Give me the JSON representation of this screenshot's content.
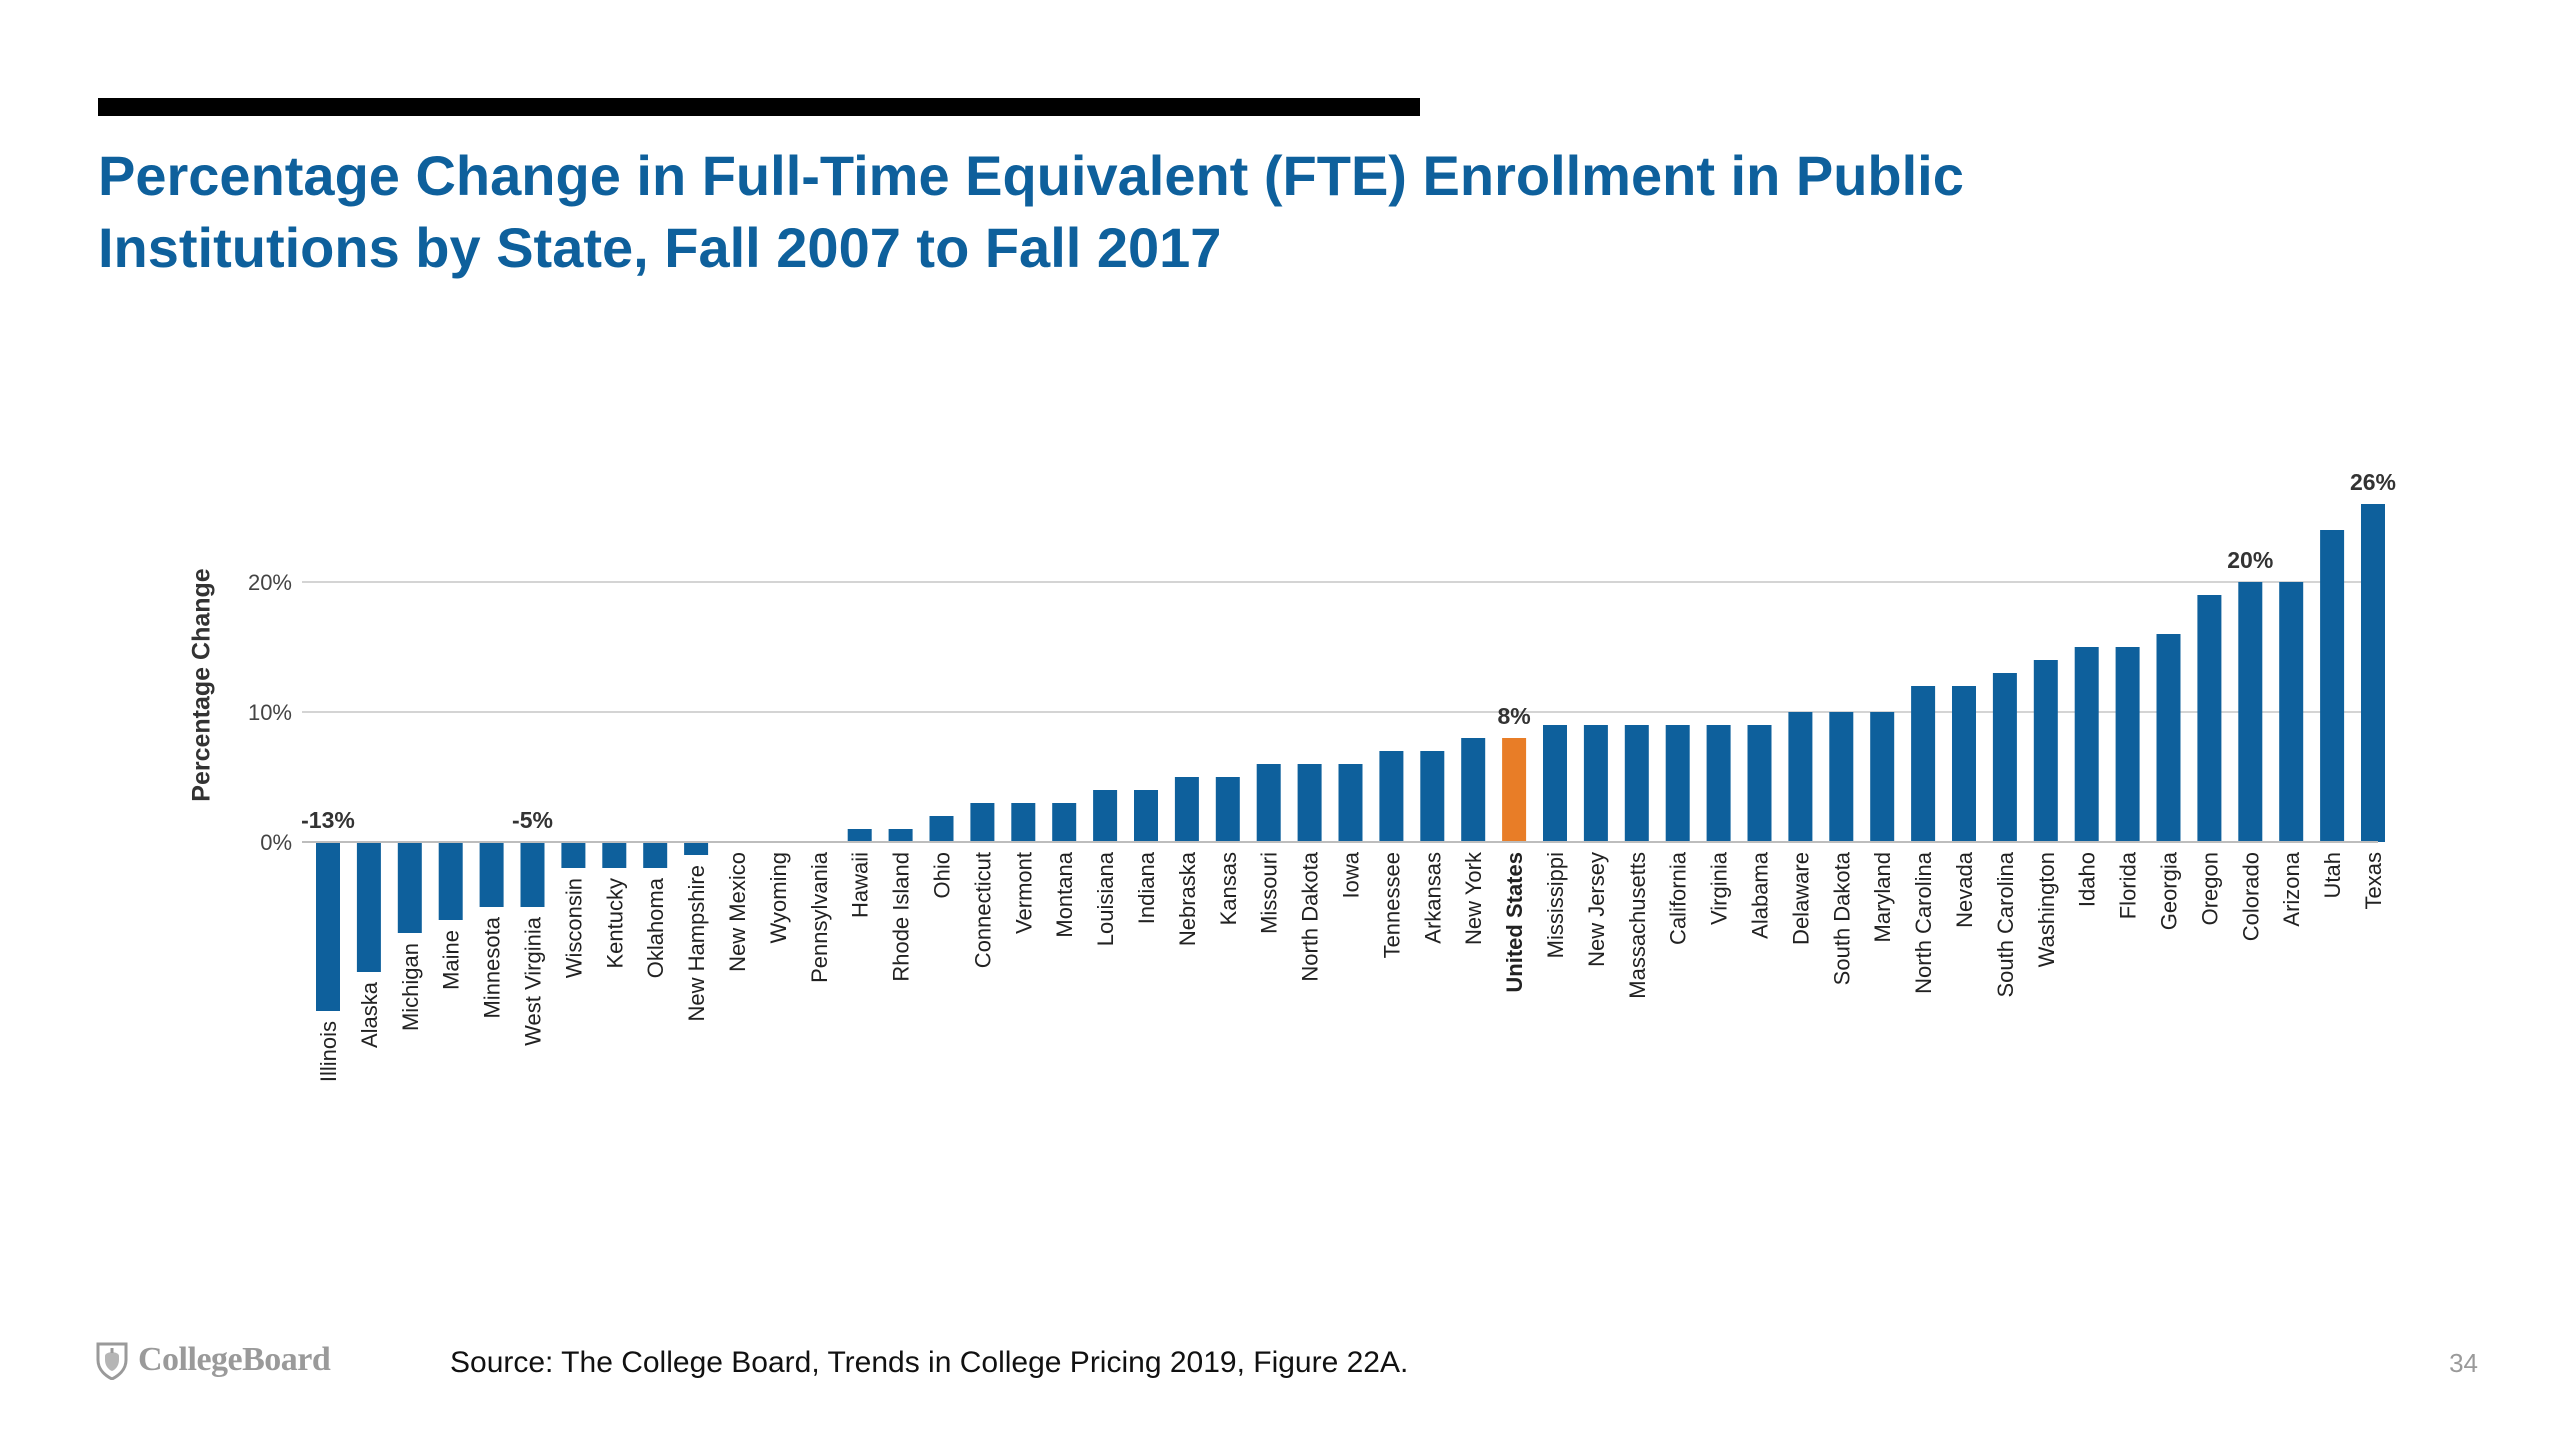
{
  "slide": {
    "title_line1": "Percentage Change in Full-Time Equivalent (FTE) Enrollment in Public",
    "title_line2": "Institutions by State, Fall 2007 to Fall 2017",
    "source": "Source: The College Board, Trends in College Pricing 2019, Figure 22A.",
    "page_number": "34",
    "logo_text": "CollegeBoard",
    "logo_icon": "acorn-shield-icon"
  },
  "colors": {
    "title": "#0e609c",
    "bar_default": "#0e609c",
    "bar_highlight": "#e87d27",
    "gridline": "#d4d4d4"
  },
  "chart_data": {
    "type": "bar",
    "title": "Percentage Change in Full-Time Equivalent (FTE) Enrollment in Public Institutions by State, Fall 2007 to Fall 2017",
    "xlabel": "",
    "ylabel": "Percentage Change",
    "ylim": [
      -13,
      26
    ],
    "yticks": [
      0,
      10,
      20
    ],
    "ytick_labels": [
      "0%",
      "10%",
      "20%"
    ],
    "grid": true,
    "highlight_category": "United States",
    "categories": [
      "Illinois",
      "Alaska",
      "Michigan",
      "Maine",
      "Minnesota",
      "West Virginia",
      "Wisconsin",
      "Kentucky",
      "Oklahoma",
      "New Hampshire",
      "New Mexico",
      "Wyoming",
      "Pennsylvania",
      "Hawaii",
      "Rhode Island",
      "Ohio",
      "Connecticut",
      "Vermont",
      "Montana",
      "Louisiana",
      "Indiana",
      "Nebraska",
      "Kansas",
      "Missouri",
      "North Dakota",
      "Iowa",
      "Tennessee",
      "Arkansas",
      "New York",
      "United States",
      "Mississippi",
      "New Jersey",
      "Massachusetts",
      "California",
      "Virginia",
      "Alabama",
      "Delaware",
      "South Dakota",
      "Maryland",
      "North Carolina",
      "Nevada",
      "South Carolina",
      "Washington",
      "Idaho",
      "Florida",
      "Georgia",
      "Oregon",
      "Colorado",
      "Arizona",
      "Utah",
      "Texas"
    ],
    "values": [
      -13,
      -10,
      -7,
      -6,
      -5,
      -5,
      -2,
      -2,
      -2,
      -1,
      0,
      0,
      0,
      1,
      1,
      2,
      3,
      3,
      3,
      4,
      4,
      5,
      5,
      6,
      6,
      6,
      7,
      7,
      8,
      8,
      9,
      9,
      9,
      9,
      9,
      9,
      10,
      10,
      10,
      12,
      12,
      13,
      14,
      15,
      15,
      16,
      19,
      20,
      20,
      24,
      26
    ],
    "data_labels": [
      {
        "category": "Illinois",
        "text": "-13%"
      },
      {
        "category": "West Virginia",
        "text": "-5%"
      },
      {
        "category": "United States",
        "text": "8%"
      },
      {
        "category": "Colorado",
        "text": "20%"
      },
      {
        "category": "Texas",
        "text": "26%"
      }
    ]
  }
}
